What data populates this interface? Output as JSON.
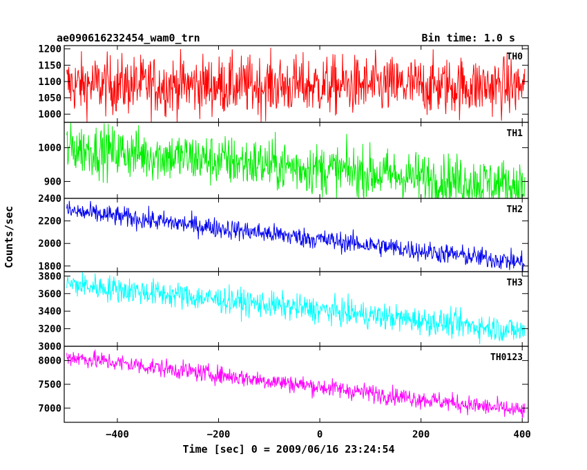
{
  "header": {
    "title": "ae090616232454_wam0_trn",
    "bin_time": "Bin time: 1.0 s"
  },
  "chart_data": {
    "type": "line",
    "xlabel": "Time [sec] 0 = 2009/06/16 23:24:54",
    "ylabel": "Counts/sec",
    "xlim": [
      -505,
      412
    ],
    "x_ticks": [
      -400,
      -200,
      0,
      200,
      400
    ],
    "x_tick_labels": [
      "−400",
      "−200",
      "0",
      "200",
      "400"
    ],
    "x_start": -500,
    "x_end": 405,
    "panels": [
      {
        "name": "TH0",
        "color": "#ff0000",
        "ylim": [
          975,
          1210
        ],
        "y_ticks": [
          1000,
          1050,
          1100,
          1150,
          1200
        ],
        "y_tick_labels": [
          "1000",
          "1050",
          "1100",
          "1150",
          "1200"
        ],
        "trend": [
          [
            -500,
            1090
          ],
          [
            405,
            1085
          ]
        ],
        "noise_amplitude": 45
      },
      {
        "name": "TH1",
        "color": "#00ee00",
        "ylim": [
          850,
          1075
        ],
        "y_ticks": [
          900,
          1000
        ],
        "y_tick_labels": [
          "900",
          "1000"
        ],
        "trend": [
          [
            -500,
            1000
          ],
          [
            405,
            885
          ]
        ],
        "noise_amplitude": 38
      },
      {
        "name": "TH2",
        "color": "#0000ee",
        "ylim": [
          1750,
          2400
        ],
        "y_ticks": [
          1800,
          2000,
          2200,
          2400
        ],
        "y_tick_labels": [
          "1800",
          "2000",
          "2200",
          "2400"
        ],
        "trend": [
          [
            -500,
            2290
          ],
          [
            405,
            1830
          ]
        ],
        "noise_amplitude": 45
      },
      {
        "name": "TH3",
        "color": "#00ffff",
        "ylim": [
          3000,
          3850
        ],
        "y_ticks": [
          3000,
          3200,
          3400,
          3600,
          3800
        ],
        "y_tick_labels": [
          "3000",
          "3200",
          "3400",
          "3600",
          "3800"
        ],
        "trend": [
          [
            -500,
            3710
          ],
          [
            405,
            3170
          ]
        ],
        "noise_amplitude": 75
      },
      {
        "name": "TH0123",
        "color": "#ff00ff",
        "ylim": [
          6700,
          8300
        ],
        "y_ticks": [
          7000,
          7500,
          8000
        ],
        "y_tick_labels": [
          "7000",
          "7500",
          "8000"
        ],
        "trend": [
          [
            -500,
            8080
          ],
          [
            405,
            6930
          ]
        ],
        "noise_amplitude": 95
      }
    ]
  }
}
